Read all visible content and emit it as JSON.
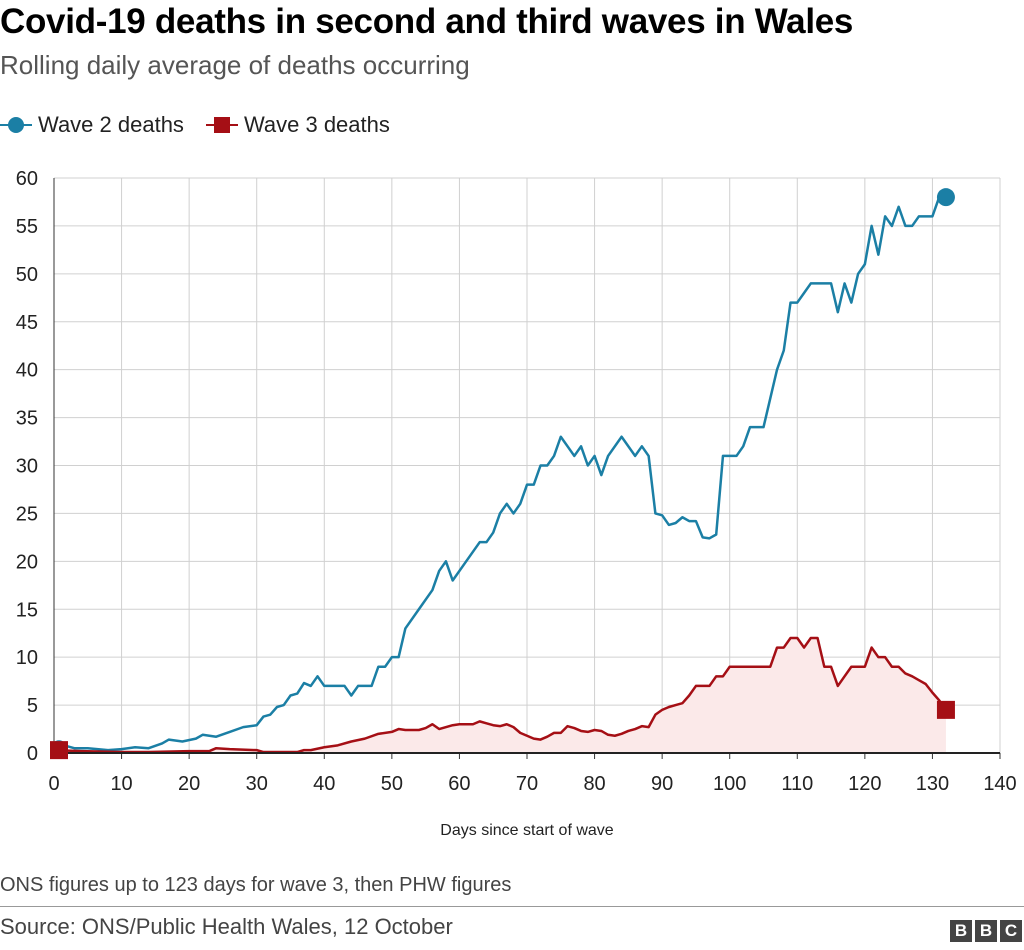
{
  "title": "Covid-19 deaths in second and third waves in Wales",
  "subtitle": "Rolling daily average of deaths occurring",
  "legend": {
    "wave2": "Wave 2 deaths",
    "wave3": "Wave 3 deaths"
  },
  "footnote": "ONS figures up to 123 days for wave 3, then PHW figures",
  "source": "Source: ONS/Public Health Wales, 12 October",
  "logo": [
    "B",
    "B",
    "C"
  ],
  "colors": {
    "wave2": "#1b7fa5",
    "wave3": "#a50f15",
    "area": "#fbe9e9",
    "grid": "#d0d0d0"
  },
  "chart_data": {
    "type": "line",
    "xlabel": "Days since start of wave",
    "ylabel": "",
    "xlim": [
      0,
      140
    ],
    "ylim": [
      0,
      60
    ],
    "xticks": [
      0,
      10,
      20,
      30,
      40,
      50,
      60,
      70,
      80,
      90,
      100,
      110,
      120,
      130,
      140
    ],
    "yticks": [
      0,
      5,
      10,
      15,
      20,
      25,
      30,
      35,
      40,
      45,
      50,
      55,
      60
    ],
    "grid": true,
    "legend_position": "top-left",
    "series": [
      {
        "name": "Wave 2 deaths",
        "marker": "circle",
        "points": [
          [
            0,
            0.5
          ],
          [
            1,
            1
          ],
          [
            2,
            0.7
          ],
          [
            3,
            0.5
          ],
          [
            5,
            0.5
          ],
          [
            8,
            0.3
          ],
          [
            10,
            0.4
          ],
          [
            12,
            0.6
          ],
          [
            14,
            0.5
          ],
          [
            16,
            1
          ],
          [
            17,
            1.4
          ],
          [
            19,
            1.2
          ],
          [
            21,
            1.5
          ],
          [
            22,
            1.9
          ],
          [
            24,
            1.7
          ],
          [
            26,
            2.2
          ],
          [
            28,
            2.7
          ],
          [
            30,
            2.9
          ],
          [
            31,
            3.8
          ],
          [
            32,
            4
          ],
          [
            33,
            4.8
          ],
          [
            34,
            5
          ],
          [
            35,
            6
          ],
          [
            36,
            6.2
          ],
          [
            37,
            7.3
          ],
          [
            38,
            7
          ],
          [
            39,
            8
          ],
          [
            40,
            7
          ],
          [
            42,
            7
          ],
          [
            43,
            7
          ],
          [
            44,
            6
          ],
          [
            45,
            7
          ],
          [
            47,
            7
          ],
          [
            48,
            9
          ],
          [
            49,
            9
          ],
          [
            50,
            10
          ],
          [
            51,
            10
          ],
          [
            52,
            13
          ],
          [
            54,
            15
          ],
          [
            56,
            17
          ],
          [
            57,
            19
          ],
          [
            58,
            20
          ],
          [
            59,
            18
          ],
          [
            61,
            20
          ],
          [
            63,
            22
          ],
          [
            64,
            22
          ],
          [
            65,
            23
          ],
          [
            66,
            25
          ],
          [
            67,
            26
          ],
          [
            68,
            25
          ],
          [
            69,
            26
          ],
          [
            70,
            28
          ],
          [
            71,
            28
          ],
          [
            72,
            30
          ],
          [
            73,
            30
          ],
          [
            74,
            31
          ],
          [
            75,
            33
          ],
          [
            76,
            32
          ],
          [
            77,
            31
          ],
          [
            78,
            32
          ],
          [
            79,
            30
          ],
          [
            80,
            31
          ],
          [
            81,
            29
          ],
          [
            82,
            31
          ],
          [
            84,
            33
          ],
          [
            86,
            31
          ],
          [
            87,
            32
          ],
          [
            88,
            31
          ],
          [
            89,
            25
          ],
          [
            90,
            24.8
          ],
          [
            91,
            23.8
          ],
          [
            92,
            24
          ],
          [
            93,
            24.6
          ],
          [
            94,
            24.2
          ],
          [
            95,
            24.2
          ],
          [
            96,
            22.5
          ],
          [
            97,
            22.4
          ],
          [
            98,
            22.8
          ],
          [
            99,
            31
          ],
          [
            101,
            31
          ],
          [
            102,
            32
          ],
          [
            103,
            34
          ],
          [
            105,
            34
          ],
          [
            106,
            37
          ],
          [
            107,
            40
          ],
          [
            108,
            42
          ],
          [
            109,
            47
          ],
          [
            110,
            47
          ],
          [
            111,
            48
          ],
          [
            112,
            49
          ],
          [
            114,
            49
          ],
          [
            115,
            49
          ],
          [
            116,
            46
          ],
          [
            117,
            49
          ],
          [
            118,
            47
          ],
          [
            119,
            50
          ],
          [
            120,
            51
          ],
          [
            121,
            55
          ],
          [
            122,
            52
          ],
          [
            123,
            56
          ],
          [
            124,
            55
          ],
          [
            125,
            57
          ],
          [
            126,
            55
          ],
          [
            127,
            55
          ],
          [
            128,
            56
          ],
          [
            130,
            56
          ],
          [
            131,
            58
          ],
          [
            132,
            58
          ]
        ]
      },
      {
        "name": "Wave 3 deaths",
        "marker": "square",
        "points": [
          [
            0,
            0.3
          ],
          [
            4,
            0.2
          ],
          [
            10,
            0.1
          ],
          [
            14,
            0.1
          ],
          [
            20,
            0.2
          ],
          [
            23,
            0.2
          ],
          [
            24,
            0.5
          ],
          [
            26,
            0.4
          ],
          [
            30,
            0.3
          ],
          [
            31,
            0.1
          ],
          [
            35,
            0.1
          ],
          [
            36,
            0.1
          ],
          [
            37,
            0.3
          ],
          [
            38,
            0.3
          ],
          [
            40,
            0.6
          ],
          [
            42,
            0.8
          ],
          [
            44,
            1.2
          ],
          [
            46,
            1.5
          ],
          [
            48,
            2
          ],
          [
            50,
            2.2
          ],
          [
            51,
            2.5
          ],
          [
            52,
            2.4
          ],
          [
            54,
            2.4
          ],
          [
            55,
            2.6
          ],
          [
            56,
            3
          ],
          [
            57,
            2.5
          ],
          [
            59,
            2.9
          ],
          [
            60,
            3
          ],
          [
            62,
            3
          ],
          [
            63,
            3.3
          ],
          [
            64,
            3.1
          ],
          [
            65,
            2.9
          ],
          [
            66,
            2.8
          ],
          [
            67,
            3
          ],
          [
            68,
            2.7
          ],
          [
            69,
            2.1
          ],
          [
            70,
            1.8
          ],
          [
            71,
            1.5
          ],
          [
            72,
            1.4
          ],
          [
            73,
            1.7
          ],
          [
            74,
            2.1
          ],
          [
            75,
            2.1
          ],
          [
            76,
            2.8
          ],
          [
            77,
            2.6
          ],
          [
            78,
            2.3
          ],
          [
            79,
            2.2
          ],
          [
            80,
            2.4
          ],
          [
            81,
            2.3
          ],
          [
            82,
            1.9
          ],
          [
            83,
            1.8
          ],
          [
            84,
            2
          ],
          [
            85,
            2.3
          ],
          [
            86,
            2.5
          ],
          [
            87,
            2.8
          ],
          [
            88,
            2.7
          ],
          [
            89,
            4
          ],
          [
            90,
            4.5
          ],
          [
            91,
            4.8
          ],
          [
            92,
            5
          ],
          [
            93,
            5.2
          ],
          [
            94,
            6
          ],
          [
            95,
            7
          ],
          [
            97,
            7
          ],
          [
            98,
            8
          ],
          [
            99,
            8
          ],
          [
            100,
            9
          ],
          [
            106,
            9
          ],
          [
            107,
            11
          ],
          [
            108,
            11
          ],
          [
            109,
            12
          ],
          [
            110,
            12
          ],
          [
            111,
            11
          ],
          [
            112,
            12
          ],
          [
            113,
            12
          ],
          [
            114,
            9
          ],
          [
            115,
            9
          ],
          [
            116,
            7
          ],
          [
            117,
            8
          ],
          [
            118,
            9
          ],
          [
            120,
            9
          ],
          [
            121,
            11
          ],
          [
            122,
            10
          ],
          [
            123,
            10
          ],
          [
            124,
            9
          ],
          [
            125,
            9
          ],
          [
            126,
            8.3
          ],
          [
            127,
            8
          ],
          [
            128,
            7.6
          ],
          [
            129,
            7.2
          ],
          [
            130,
            6.3
          ],
          [
            131,
            5.5
          ],
          [
            132,
            4.5
          ]
        ]
      }
    ]
  }
}
